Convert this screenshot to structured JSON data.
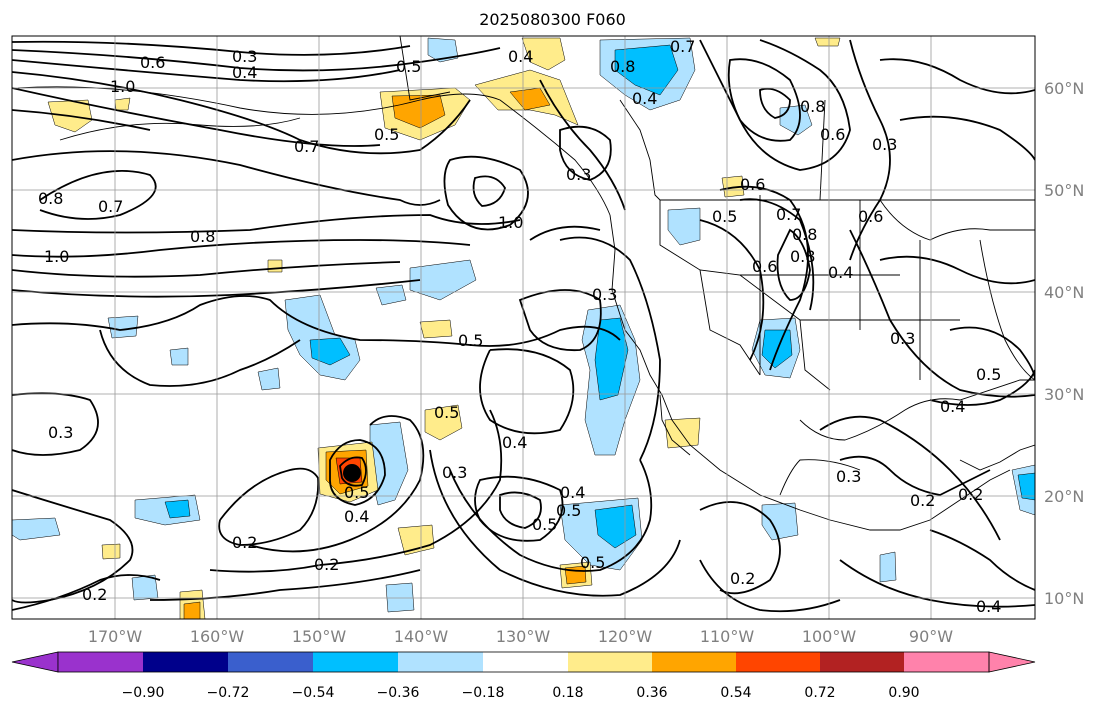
{
  "title": "2025080300 F060",
  "lon_labels": [
    "170°W",
    "160°W",
    "150°W",
    "140°W",
    "130°W",
    "120°W",
    "110°W",
    "100°W",
    "90°W"
  ],
  "lat_labels": [
    "60°N",
    "50°N",
    "40°N",
    "30°N",
    "20°N",
    "10°N"
  ],
  "colorbar": {
    "ticks": [
      "−0.90",
      "−0.72",
      "−0.54",
      "−0.36",
      "−0.18",
      "0.18",
      "0.36",
      "0.54",
      "0.72",
      "0.90"
    ],
    "colors": [
      "#9a32cd",
      "#00008b",
      "#3a5fcd",
      "#00bfff",
      "#b0e2ff",
      "#ffffff",
      "#ffec8b",
      "#ffa500",
      "#ff4500",
      "#b22222",
      "#ff82ab"
    ]
  },
  "contour_labels": [
    "0.3",
    "0.4",
    "0.6",
    "1.0",
    "0.5",
    "0.4",
    "0.7",
    "0.8",
    "0.4",
    "0.5",
    "0.7",
    "0.3",
    "1.0",
    "0.8",
    "0.7",
    "0.8",
    "1.0",
    "0.5",
    "0.4",
    "0.5",
    "0.3",
    "0.5",
    "0.3",
    "0.2",
    "0.4",
    "0.2",
    "0.2",
    "0.5",
    "0.5",
    "0.5",
    "0.3",
    "0.2",
    "0.2",
    "0.3",
    "0.4",
    "0.5",
    "0.8",
    "0.6",
    "0.8",
    "0.6",
    "0.7",
    "0.8",
    "0.6",
    "0.4",
    "0.3",
    "0.2",
    "0.4",
    "0.3",
    "0.5",
    "0.4",
    "0.6"
  ]
}
